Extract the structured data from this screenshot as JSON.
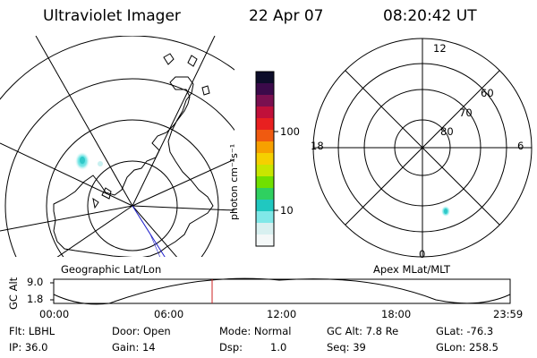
{
  "header": {
    "title": "Ultraviolet Imager",
    "date": "22 Apr 07",
    "time": "08:20:42 UT"
  },
  "colorbar": {
    "unit_label": "photon cm⁻²s⁻¹",
    "ticks": [
      "100",
      "10"
    ],
    "colors": [
      "#0d0d2a",
      "#3b0a4a",
      "#7a1050",
      "#c0103a",
      "#e82020",
      "#f05a10",
      "#f7a000",
      "#f5d000",
      "#c8e600",
      "#70e000",
      "#2fd060",
      "#20c8c0",
      "#80e8e8",
      "#d8f0f0",
      "#f4f8f8"
    ]
  },
  "left_map": {
    "label": "Geographic Lat/Lon"
  },
  "right_map": {
    "label": "Apex MLat/MLT",
    "lat_labels": [
      "60",
      "70",
      "80"
    ],
    "mlt_labels": {
      "top": "12",
      "left": "18",
      "right": "6",
      "bottom": "0"
    }
  },
  "timeline": {
    "ylabel": "GC Alt",
    "y_ticks": [
      "9.0",
      "1.8"
    ],
    "x_ticks": [
      "00:00",
      "06:00",
      "12:00",
      "18:00",
      "23:59"
    ]
  },
  "status": {
    "col1": [
      "Flt: LBHL",
      "IP: 36.0"
    ],
    "col2": [
      "Door: Open",
      "Gain: 14"
    ],
    "col3a": [
      "Mode: Normal",
      "Dsp:"
    ],
    "col3b": [
      "",
      "1.0"
    ],
    "col4": [
      "GC Alt: 7.8 Re",
      "Seq: 39"
    ],
    "col5": [
      "GLat: -76.3",
      "GLon: 258.5"
    ]
  },
  "colors": {
    "grid": "#000000",
    "orbit": "#2222cc",
    "current_time_marker": "#cc2222",
    "aurora_spot": "#40d8d0"
  }
}
